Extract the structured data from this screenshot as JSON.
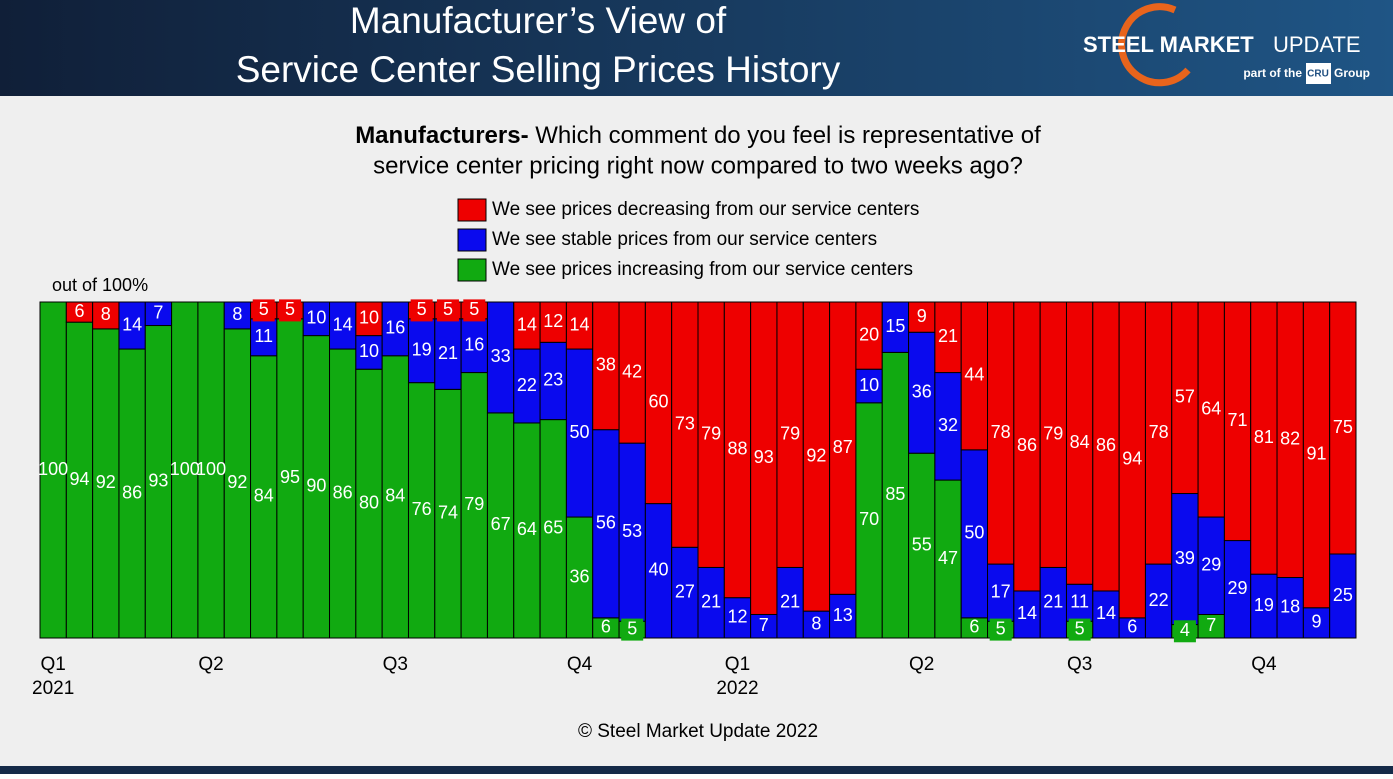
{
  "header": {
    "title": [
      "Manufacturer’s View of",
      "Service Center Selling Prices History"
    ],
    "logo": {
      "brand_bold": "STEEL MARKET",
      "brand_light": "UPDATE",
      "tagline_pre": "part of the",
      "tagline_mark": "CRU",
      "tagline_post": "Group"
    }
  },
  "chart_data": {
    "type": "stacked_bar",
    "title_lead": "Manufacturers-",
    "title": [
      "Which comment do you feel is representative of",
      "service center pricing right now compared to two weeks ago?"
    ],
    "annotation": "out of 100%",
    "categories": [
      "Q1 2021",
      null,
      null,
      null,
      null,
      null,
      "Q2",
      null,
      null,
      null,
      null,
      null,
      null,
      "Q3",
      null,
      null,
      null,
      null,
      null,
      null,
      "Q4",
      null,
      null,
      null,
      null,
      null,
      "Q1 2022",
      null,
      null,
      null,
      null,
      null,
      null,
      "Q2",
      null,
      null,
      null,
      null,
      null,
      "Q3",
      null,
      null,
      null,
      null,
      null,
      null,
      "Q4",
      null,
      null,
      null
    ],
    "series": [
      {
        "name": "We see prices increasing from our service centers",
        "color": "#11aa11",
        "values": [
          100,
          94,
          92,
          86,
          93,
          100,
          100,
          92,
          84,
          95,
          90,
          86,
          80,
          84,
          76,
          74,
          79,
          67,
          64,
          65,
          36,
          6,
          5,
          0,
          0,
          0,
          0,
          0,
          0,
          0,
          0,
          70,
          85,
          55,
          47,
          6,
          5,
          0,
          0,
          5,
          0,
          0,
          0,
          4,
          7,
          0,
          0,
          0,
          0,
          0
        ]
      },
      {
        "name": "We see stable prices from our service centers",
        "color": "#0a0aee",
        "values": [
          0,
          0,
          0,
          14,
          7,
          0,
          0,
          8,
          11,
          0,
          10,
          14,
          10,
          16,
          19,
          21,
          16,
          33,
          22,
          23,
          50,
          56,
          53,
          40,
          27,
          21,
          12,
          7,
          21,
          8,
          13,
          10,
          15,
          36,
          32,
          50,
          17,
          14,
          21,
          11,
          14,
          6,
          22,
          39,
          29,
          29,
          19,
          18,
          9,
          25
        ]
      },
      {
        "name": "We see prices decreasing from our service centers",
        "color": "#ee0000",
        "values": [
          0,
          6,
          8,
          0,
          0,
          0,
          0,
          0,
          5,
          5,
          0,
          0,
          10,
          0,
          5,
          5,
          5,
          0,
          14,
          12,
          14,
          38,
          42,
          60,
          73,
          79,
          88,
          93,
          79,
          92,
          87,
          20,
          0,
          9,
          21,
          44,
          78,
          86,
          79,
          84,
          86,
          94,
          78,
          57,
          64,
          71,
          81,
          82,
          91,
          75
        ]
      }
    ],
    "ylim": [
      0,
      100
    ]
  },
  "footer": {
    "copyright": "© Steel Market Update 2022"
  }
}
